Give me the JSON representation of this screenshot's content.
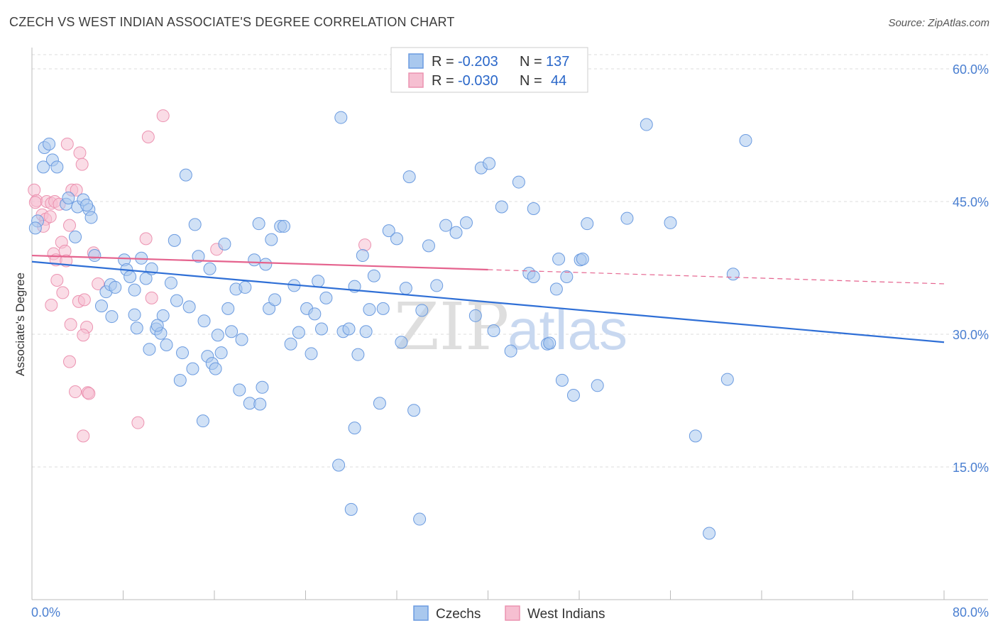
{
  "title": "CZECH VS WEST INDIAN ASSOCIATE'S DEGREE CORRELATION CHART",
  "source": "Source: ZipAtlas.com",
  "watermark": {
    "zip": "ZIP",
    "atlas": "atlas"
  },
  "colors": {
    "czech_fill": "#a9c8ee",
    "czech_stroke": "#6b9be0",
    "czech_line": "#2f6fd6",
    "wi_fill": "#f6bfd1",
    "wi_stroke": "#ec93b1",
    "wi_line": "#e5638e",
    "axis_text": "#4a7fd1",
    "grid": "#dddddd"
  },
  "legend": {
    "rows": [
      {
        "r_label": "R =",
        "r_value": "-0.203",
        "n_label": "N =",
        "n_value": "137"
      },
      {
        "r_label": "R =",
        "r_value": "-0.030",
        "n_label": "N =",
        "n_value": "44"
      }
    ]
  },
  "bottom_legend": {
    "czechs": "Czechs",
    "west_indians": "West Indians"
  },
  "chart_data": {
    "type": "scatter",
    "xlabel": "",
    "ylabel": "Associate's Degree",
    "xlim": [
      0,
      80
    ],
    "ylim": [
      0,
      60
    ],
    "x_tick_labels": [
      "0.0%",
      "80.0%"
    ],
    "y_ticks": [
      15,
      30,
      45,
      60
    ],
    "y_tick_labels": [
      "15.0%",
      "30.0%",
      "45.0%",
      "60.0%"
    ],
    "grid": true,
    "series": [
      {
        "name": "Czechs",
        "trend": {
          "x0": 0,
          "y0": 38.2,
          "x1": 80,
          "y1": 29.1
        },
        "points": [
          [
            1.0,
            48.9
          ],
          [
            1.1,
            51.1
          ],
          [
            1.5,
            51.5
          ],
          [
            1.8,
            49.7
          ],
          [
            2.2,
            48.9
          ],
          [
            3.0,
            44.7
          ],
          [
            3.2,
            45.4
          ],
          [
            4.0,
            44.4
          ],
          [
            4.5,
            45.2
          ],
          [
            5.0,
            44.1
          ],
          [
            4.8,
            44.6
          ],
          [
            5.2,
            43.2
          ],
          [
            3.8,
            41.0
          ],
          [
            0.5,
            42.8
          ],
          [
            0.3,
            42.0
          ],
          [
            5.5,
            38.9
          ],
          [
            6.1,
            33.2
          ],
          [
            6.5,
            34.8
          ],
          [
            6.9,
            35.6
          ],
          [
            7.3,
            35.3
          ],
          [
            8.1,
            38.4
          ],
          [
            8.3,
            37.3
          ],
          [
            8.6,
            36.5
          ],
          [
            9.0,
            32.2
          ],
          [
            9.2,
            30.7
          ],
          [
            9.6,
            38.6
          ],
          [
            10.0,
            36.3
          ],
          [
            10.3,
            28.3
          ],
          [
            10.5,
            37.4
          ],
          [
            10.9,
            30.6
          ],
          [
            11.3,
            30.1
          ],
          [
            11.5,
            32.1
          ],
          [
            11.8,
            28.8
          ],
          [
            12.2,
            35.8
          ],
          [
            12.5,
            40.6
          ],
          [
            12.7,
            33.8
          ],
          [
            13.2,
            27.9
          ],
          [
            13.5,
            48.0
          ],
          [
            13.8,
            33.1
          ],
          [
            14.1,
            26.1
          ],
          [
            14.3,
            42.4
          ],
          [
            14.6,
            38.8
          ],
          [
            15.1,
            31.5
          ],
          [
            15.4,
            27.5
          ],
          [
            15.6,
            37.4
          ],
          [
            15.8,
            26.7
          ],
          [
            16.1,
            26.1
          ],
          [
            16.3,
            29.9
          ],
          [
            16.6,
            27.9
          ],
          [
            16.9,
            40.2
          ],
          [
            17.2,
            32.9
          ],
          [
            17.5,
            30.3
          ],
          [
            17.9,
            35.1
          ],
          [
            18.2,
            23.7
          ],
          [
            18.4,
            29.4
          ],
          [
            18.7,
            35.3
          ],
          [
            19.1,
            22.2
          ],
          [
            19.5,
            38.4
          ],
          [
            19.9,
            42.5
          ],
          [
            20.2,
            24.0
          ],
          [
            20.5,
            37.9
          ],
          [
            20.8,
            32.9
          ],
          [
            21.0,
            40.7
          ],
          [
            21.3,
            33.9
          ],
          [
            21.8,
            42.2
          ],
          [
            22.1,
            42.2
          ],
          [
            22.7,
            28.9
          ],
          [
            23.0,
            35.5
          ],
          [
            23.4,
            30.2
          ],
          [
            24.1,
            32.9
          ],
          [
            24.5,
            27.8
          ],
          [
            24.8,
            32.3
          ],
          [
            25.1,
            36.0
          ],
          [
            25.4,
            30.6
          ],
          [
            25.8,
            34.1
          ],
          [
            27.1,
            54.5
          ],
          [
            27.3,
            30.3
          ],
          [
            27.8,
            30.6
          ],
          [
            28.3,
            35.4
          ],
          [
            28.6,
            27.7
          ],
          [
            29.0,
            38.9
          ],
          [
            29.3,
            30.3
          ],
          [
            29.6,
            32.8
          ],
          [
            30.0,
            36.6
          ],
          [
            30.5,
            22.2
          ],
          [
            30.8,
            32.9
          ],
          [
            31.3,
            41.7
          ],
          [
            32.0,
            40.8
          ],
          [
            32.4,
            29.1
          ],
          [
            32.8,
            35.2
          ],
          [
            33.1,
            47.8
          ],
          [
            33.5,
            21.4
          ],
          [
            34.2,
            32.7
          ],
          [
            34.8,
            40.0
          ],
          [
            35.5,
            35.5
          ],
          [
            36.3,
            42.3
          ],
          [
            37.2,
            41.5
          ],
          [
            38.1,
            42.6
          ],
          [
            38.9,
            32.1
          ],
          [
            39.4,
            48.8
          ],
          [
            40.1,
            49.3
          ],
          [
            40.5,
            30.4
          ],
          [
            41.2,
            44.4
          ],
          [
            42.0,
            28.1
          ],
          [
            42.7,
            47.2
          ],
          [
            43.6,
            36.9
          ],
          [
            44.0,
            44.2
          ],
          [
            45.2,
            28.9
          ],
          [
            45.4,
            29.0
          ],
          [
            46.0,
            35.1
          ],
          [
            46.5,
            24.8
          ],
          [
            46.9,
            36.5
          ],
          [
            47.5,
            23.1
          ],
          [
            48.1,
            38.4
          ],
          [
            48.3,
            38.5
          ],
          [
            48.7,
            42.5
          ],
          [
            49.6,
            24.2
          ],
          [
            52.2,
            43.1
          ],
          [
            53.9,
            53.7
          ],
          [
            56.0,
            42.6
          ],
          [
            58.2,
            18.5
          ],
          [
            59.4,
            7.5
          ],
          [
            61.0,
            24.9
          ],
          [
            61.5,
            36.8
          ],
          [
            62.6,
            51.9
          ],
          [
            28.0,
            10.2
          ],
          [
            34.0,
            9.1
          ],
          [
            26.9,
            15.2
          ],
          [
            28.3,
            19.4
          ],
          [
            20.0,
            22.1
          ],
          [
            15.0,
            20.2
          ],
          [
            13.0,
            24.8
          ],
          [
            7.0,
            32.0
          ],
          [
            11.0,
            31.0
          ],
          [
            9.0,
            35.0
          ],
          [
            44.0,
            36.5
          ],
          [
            46.2,
            38.5
          ]
        ]
      },
      {
        "name": "West Indians",
        "trend": {
          "x0": 0,
          "y0": 38.9,
          "x1": 40,
          "y1": 37.3,
          "x2": 80,
          "y2": 35.7
        },
        "points": [
          [
            0.2,
            46.3
          ],
          [
            0.4,
            45.1
          ],
          [
            0.3,
            44.9
          ],
          [
            1.3,
            45.0
          ],
          [
            1.7,
            44.8
          ],
          [
            2.0,
            45.0
          ],
          [
            0.9,
            43.5
          ],
          [
            1.2,
            43.0
          ],
          [
            1.6,
            43.3
          ],
          [
            1.0,
            42.2
          ],
          [
            2.4,
            44.7
          ],
          [
            3.1,
            51.5
          ],
          [
            3.3,
            42.3
          ],
          [
            3.5,
            46.3
          ],
          [
            3.9,
            46.3
          ],
          [
            4.2,
            50.5
          ],
          [
            4.4,
            49.2
          ],
          [
            2.6,
            40.4
          ],
          [
            2.9,
            39.4
          ],
          [
            1.9,
            39.1
          ],
          [
            2.1,
            38.4
          ],
          [
            3.0,
            38.3
          ],
          [
            5.4,
            39.2
          ],
          [
            2.2,
            36.1
          ],
          [
            2.7,
            34.7
          ],
          [
            1.7,
            33.3
          ],
          [
            4.1,
            33.7
          ],
          [
            4.6,
            33.9
          ],
          [
            5.8,
            35.7
          ],
          [
            3.4,
            31.1
          ],
          [
            4.8,
            30.8
          ],
          [
            4.5,
            29.9
          ],
          [
            3.3,
            26.9
          ],
          [
            3.8,
            23.5
          ],
          [
            4.9,
            23.4
          ],
          [
            5.0,
            23.3
          ],
          [
            4.5,
            18.5
          ],
          [
            9.3,
            20.0
          ],
          [
            11.5,
            54.7
          ],
          [
            10.2,
            52.3
          ],
          [
            10.0,
            40.8
          ],
          [
            10.5,
            34.1
          ],
          [
            16.2,
            39.6
          ],
          [
            29.2,
            40.1
          ]
        ]
      }
    ]
  }
}
